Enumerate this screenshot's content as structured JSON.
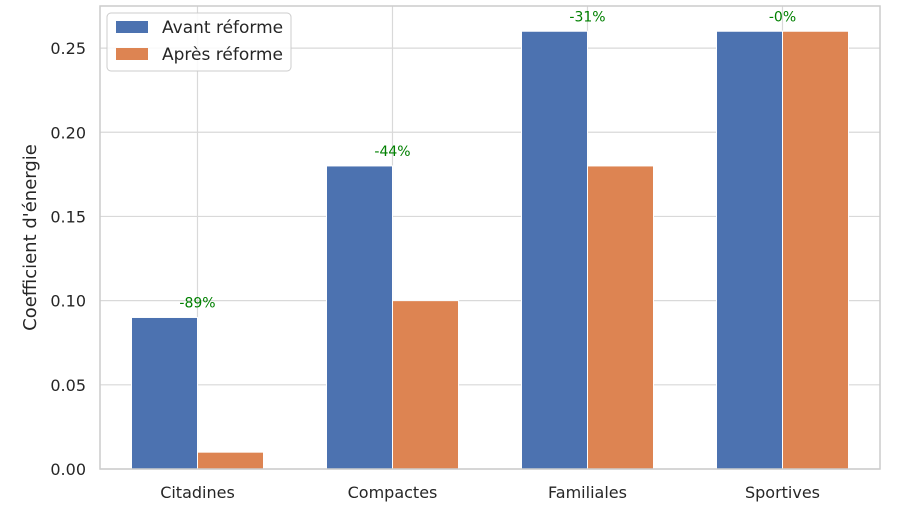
{
  "chart_data": {
    "type": "bar",
    "title": "",
    "xlabel": "",
    "ylabel": "Coefficient d'énergie",
    "categories": [
      "Citadines",
      "Compactes",
      "Familiales",
      "Sportives"
    ],
    "series": [
      {
        "name": "Avant réforme",
        "values": [
          0.09,
          0.18,
          0.26,
          0.26
        ],
        "color": "#4c72b0"
      },
      {
        "name": "Après réforme",
        "values": [
          0.01,
          0.1,
          0.18,
          0.26
        ],
        "color": "#dd8452"
      }
    ],
    "annotations": [
      "-89%",
      "-44%",
      "-31%",
      "-0%"
    ],
    "annotation_color": "#008000",
    "ylim": [
      0,
      0.275
    ],
    "yticks": [
      "0.00",
      "0.05",
      "0.10",
      "0.15",
      "0.20",
      "0.25"
    ],
    "grid": true,
    "legend_position": "top-left"
  }
}
